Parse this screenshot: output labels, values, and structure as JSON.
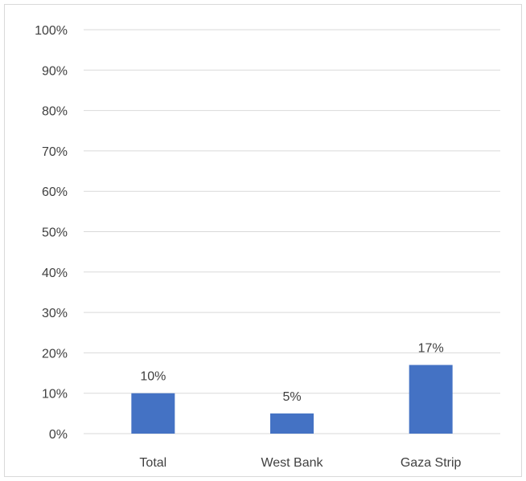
{
  "chart_data": {
    "type": "bar",
    "categories": [
      "Total",
      "West Bank",
      "Gaza Strip"
    ],
    "values": [
      10,
      5,
      17
    ],
    "data_labels": [
      "10%",
      "5%",
      "17%"
    ],
    "y_ticks": [
      "0%",
      "10%",
      "20%",
      "30%",
      "40%",
      "50%",
      "60%",
      "70%",
      "80%",
      "90%",
      "100%"
    ],
    "ylim": [
      0,
      100
    ],
    "grid": true,
    "bar_color": "#4472c4",
    "grid_color": "#d9d9d9",
    "text_color": "#404040"
  }
}
